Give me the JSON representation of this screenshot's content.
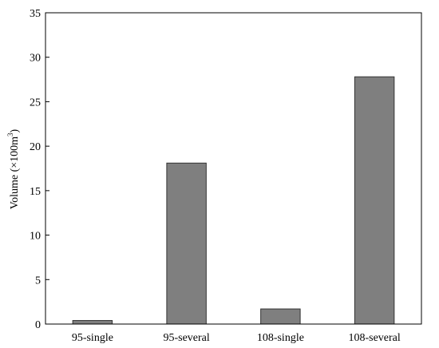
{
  "chart_data": {
    "type": "bar",
    "categories": [
      "95-single",
      "95-several",
      "108-single",
      "108-several"
    ],
    "values": [
      0.4,
      18.1,
      1.7,
      27.8
    ],
    "title": "",
    "xlabel": "",
    "ylabel": {
      "main": "Volume (×100m",
      "sup": "3",
      "close": ")"
    },
    "ylim": [
      0,
      35
    ],
    "yticks": [
      0,
      5,
      10,
      15,
      20,
      25,
      30,
      35
    ],
    "bar_color": "#7f7f7f",
    "bar_edge_color": "#333333",
    "grid": false,
    "legend": "none"
  }
}
